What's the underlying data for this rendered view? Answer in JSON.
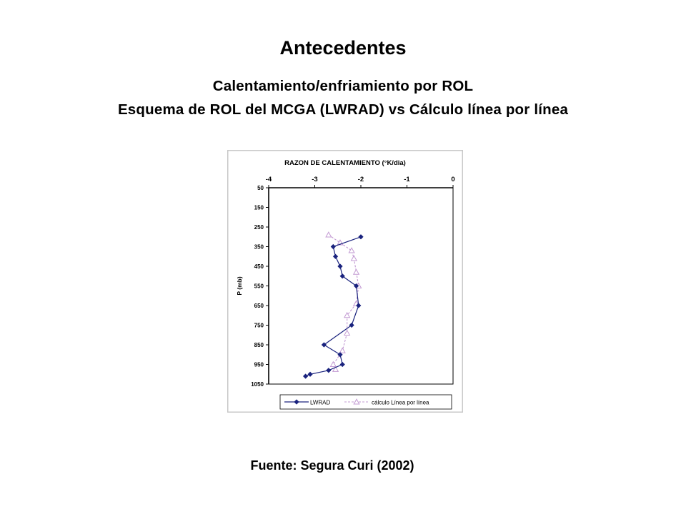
{
  "slide": {
    "title": "Antecedentes",
    "subtitle_line1": "Calentamiento/enfriamiento por ROL",
    "subtitle_line2": "Esquema de ROL del MCGA (LWRAD) vs Cálculo línea por línea",
    "source": "Fuente: Segura Curi (2002)"
  },
  "colors": {
    "background": "#ffffff",
    "chart_border": "#c8c8c8",
    "lwrad": "#1a237e",
    "linea_por_linea": "#c39bd3"
  },
  "chart_data": {
    "type": "line",
    "title": "RAZON DE CALENTAMIENTO (°K/dia)",
    "xlabel": "",
    "ylabel": "P (mb)",
    "xlim": [
      -4,
      0
    ],
    "ylim": [
      50,
      1050
    ],
    "y_inverted": true,
    "x_axis_position": "top",
    "grid": false,
    "legend_position": "bottom",
    "x_ticks": [
      "-4",
      "-3",
      "-2",
      "-1",
      "0"
    ],
    "y_ticks": [
      "50",
      "150",
      "250",
      "350",
      "450",
      "550",
      "650",
      "750",
      "850",
      "950",
      "1050"
    ],
    "series": [
      {
        "name": "LWRAD",
        "marker": "diamond",
        "x": [
          -2.0,
          -2.6,
          -2.55,
          -2.45,
          -2.4,
          -2.1,
          -2.05,
          -2.2,
          -2.8,
          -2.45,
          -2.4,
          -2.7,
          -3.1,
          -3.2
        ],
        "y": [
          300,
          350,
          400,
          450,
          500,
          550,
          650,
          750,
          850,
          900,
          950,
          980,
          1000,
          1010
        ]
      },
      {
        "name": "cálculo Línea por línea",
        "marker": "triangle",
        "x": [
          -2.7,
          -2.45,
          -2.2,
          -2.15,
          -2.1,
          -2.05,
          -2.1,
          -2.3,
          -2.3,
          -2.4,
          -2.6,
          -2.55
        ],
        "y": [
          290,
          330,
          370,
          410,
          480,
          550,
          640,
          700,
          790,
          880,
          950,
          975
        ]
      }
    ]
  }
}
